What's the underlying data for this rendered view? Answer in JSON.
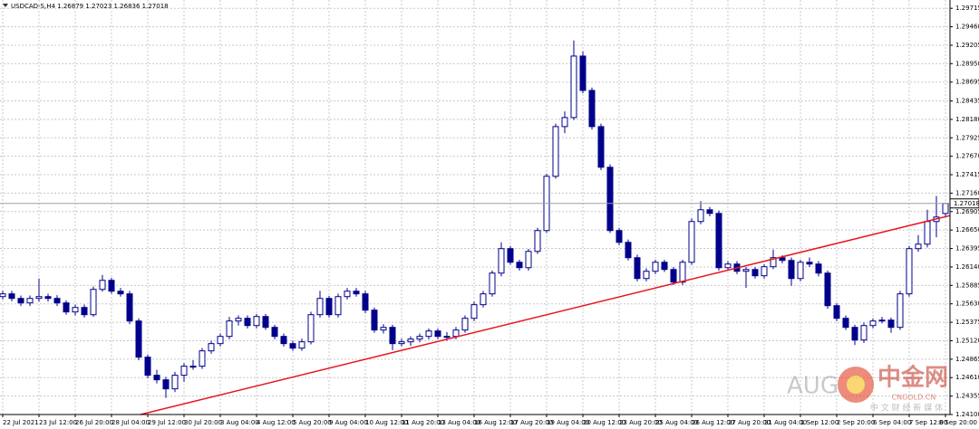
{
  "chart_data": {
    "type": "candlestick",
    "title": "USDCAD-S,H4 1.26879 1.27023 1.26836 1.27018",
    "categories": [
      "22 Jul 2021",
      null,
      null,
      null,
      "23 Jul 12:00",
      null,
      null,
      null,
      "26 Jul 20:00",
      null,
      null,
      null,
      "28 Jul 04:00",
      null,
      null,
      null,
      "29 Jul 12:00",
      null,
      null,
      null,
      "30 Jul 20:00",
      null,
      null,
      null,
      "3 Aug 04:00",
      null,
      null,
      null,
      "4 Aug 12:00",
      null,
      null,
      null,
      "5 Aug 20:00",
      null,
      null,
      null,
      "9 Aug 04:00",
      null,
      null,
      null,
      "10 Aug 12:00",
      null,
      null,
      null,
      "11 Aug 20:00",
      null,
      null,
      null,
      "13 Aug 04:00",
      null,
      null,
      null,
      "16 Aug 12:00",
      null,
      null,
      null,
      "17 Aug 20:00",
      null,
      null,
      null,
      "19 Aug 04:00",
      null,
      null,
      null,
      "20 Aug 12:00",
      null,
      null,
      null,
      "23 Aug 20:00",
      null,
      null,
      null,
      "25 Aug 04:00",
      null,
      null,
      null,
      "26 Aug 12:00",
      null,
      null,
      null,
      "27 Aug 20:00",
      null,
      null,
      null,
      "31 Aug 04:00",
      null,
      null,
      null,
      "1 Sep 12:00",
      null,
      null,
      null,
      "2 Sep 20:00",
      null,
      null,
      null,
      "6 Sep 04:00",
      null,
      null,
      null,
      "7 Sep 12:00",
      null,
      null,
      null,
      "8 Sep 20:00"
    ],
    "open": [
      1.2573,
      1.25768,
      1.25705,
      1.25643,
      1.25705,
      1.2573,
      1.25705,
      1.25643,
      1.25518,
      1.2558,
      1.2548,
      1.2583,
      1.25955,
      1.25805,
      1.25768,
      1.25393,
      1.24893,
      1.24643,
      1.2458,
      1.24455,
      1.24643,
      1.24768,
      1.24768,
      1.2498,
      1.2508,
      1.2518,
      1.25393,
      1.2543,
      1.2533,
      1.25455,
      1.25305,
      1.2518,
      1.2508,
      1.25018,
      1.25105,
      1.2548,
      1.25705,
      1.2548,
      1.2573,
      1.25805,
      1.25768,
      1.25543,
      1.25268,
      1.25305,
      1.2508,
      1.25105,
      1.25143,
      1.2518,
      1.25255,
      1.2518,
      1.2518,
      1.25268,
      1.2543,
      1.25618,
      1.25768,
      1.26055,
      1.26393,
      1.26205,
      1.2613,
      1.26355,
      1.26643,
      1.27393,
      1.2808,
      1.28205,
      1.29055,
      1.2858,
      1.2808,
      1.27518,
      1.26643,
      1.2648,
      1.26268,
      1.2598,
      1.2608,
      1.26205,
      1.26105,
      1.2593,
      1.26205,
      1.26768,
      1.2693,
      1.2688,
      1.2613,
      1.2618,
      1.2608,
      1.26105,
      1.26018,
      1.26143,
      1.26268,
      1.2623,
      1.2598,
      1.26205,
      1.2618,
      1.26055,
      1.25605,
      1.2543,
      1.25305,
      1.2513,
      1.2533,
      1.25393,
      1.25405,
      1.25305,
      1.25768,
      1.26393,
      1.26455,
      1.26768,
      1.26879
    ],
    "high": [
      1.2581,
      1.2581,
      1.25745,
      1.25745,
      1.2598,
      1.2577,
      1.2575,
      1.2568,
      1.2562,
      1.2562,
      1.2587,
      1.2603,
      1.2599,
      1.2585,
      1.2581,
      1.2543,
      1.2493,
      1.2472,
      1.2462,
      1.2469,
      1.2481,
      1.2485,
      1.2502,
      1.2512,
      1.2522,
      1.2545,
      1.2547,
      1.2547,
      1.2549,
      1.2549,
      1.2534,
      1.2522,
      1.2512,
      1.2515,
      1.2552,
      1.2581,
      1.2574,
      1.2577,
      1.2585,
      1.2585,
      1.2581,
      1.2558,
      1.2535,
      1.2534,
      1.2515,
      1.2518,
      1.2522,
      1.2529,
      1.2529,
      1.2524,
      1.2531,
      1.2547,
      1.2566,
      1.2581,
      1.2609,
      1.2648,
      1.2643,
      1.2624,
      1.2639,
      1.2668,
      1.2743,
      1.2812,
      1.2829,
      1.2927,
      1.2912,
      1.2862,
      1.2812,
      1.2756,
      1.2668,
      1.2652,
      1.2631,
      1.2612,
      1.2624,
      1.2624,
      1.2614,
      1.2624,
      1.2681,
      1.2705,
      1.2697,
      1.2692,
      1.2622,
      1.2622,
      1.2614,
      1.2614,
      1.2618,
      1.2638,
      1.263,
      1.2627,
      1.2624,
      1.2627,
      1.2622,
      1.2609,
      1.2564,
      1.2547,
      1.2534,
      1.2537,
      1.2543,
      1.2545,
      1.2544,
      1.2581,
      1.2643,
      1.2658,
      1.2693,
      1.2712,
      1.27023
    ],
    "low": [
      1.2569,
      1.25665,
      1.256,
      1.256,
      1.2566,
      1.2566,
      1.256,
      1.2548,
      1.2547,
      1.2544,
      1.2545,
      1.258,
      1.2577,
      1.2573,
      1.2535,
      1.2485,
      1.246,
      1.2453,
      1.2433,
      1.2441,
      1.2455,
      1.2472,
      1.2473,
      1.2494,
      1.2504,
      1.2514,
      1.2533,
      1.2529,
      1.2529,
      1.2527,
      1.2514,
      1.2504,
      1.2498,
      1.2498,
      1.2507,
      1.2544,
      1.2544,
      1.2544,
      1.2569,
      1.2573,
      1.255,
      1.2523,
      1.2522,
      1.2499,
      1.2504,
      1.2505,
      1.251,
      1.2514,
      1.2514,
      1.2512,
      1.2514,
      1.2523,
      1.2539,
      1.2558,
      1.2573,
      1.2601,
      1.2617,
      1.2609,
      1.2609,
      1.2632,
      1.2661,
      1.2736,
      1.2799,
      1.2817,
      1.2854,
      1.2804,
      1.2748,
      1.2661,
      1.2644,
      1.2623,
      1.2594,
      1.2594,
      1.2604,
      1.2607,
      1.2589,
      1.2589,
      1.2617,
      1.2673,
      1.2684,
      1.2609,
      1.2609,
      1.2604,
      1.2585,
      1.2598,
      1.2598,
      1.2611,
      1.2619,
      1.2588,
      1.2594,
      1.2614,
      1.2601,
      1.2556,
      1.2539,
      1.2527,
      1.2506,
      1.2509,
      1.2529,
      1.2536,
      1.2523,
      1.2527,
      1.2573,
      1.2635,
      1.2641,
      1.2655,
      1.26836
    ],
    "close": [
      1.25768,
      1.25705,
      1.25643,
      1.25705,
      1.2573,
      1.25705,
      1.25643,
      1.25518,
      1.2558,
      1.2548,
      1.2583,
      1.25955,
      1.25805,
      1.25768,
      1.25393,
      1.24893,
      1.24643,
      1.2458,
      1.24455,
      1.24643,
      1.24768,
      1.24768,
      1.2498,
      1.2508,
      1.2518,
      1.25393,
      1.2543,
      1.2533,
      1.25455,
      1.25305,
      1.2518,
      1.2508,
      1.25018,
      1.25105,
      1.2548,
      1.25705,
      1.2548,
      1.2573,
      1.25805,
      1.25768,
      1.25543,
      1.25268,
      1.25305,
      1.2508,
      1.25105,
      1.25143,
      1.2518,
      1.25255,
      1.2518,
      1.2518,
      1.25268,
      1.2543,
      1.25618,
      1.25768,
      1.26055,
      1.26393,
      1.26205,
      1.2613,
      1.26355,
      1.26643,
      1.27393,
      1.2808,
      1.28205,
      1.29055,
      1.2858,
      1.2808,
      1.27518,
      1.26643,
      1.2648,
      1.26268,
      1.2598,
      1.2608,
      1.26205,
      1.26105,
      1.2593,
      1.26205,
      1.26768,
      1.2693,
      1.2688,
      1.2613,
      1.2618,
      1.2608,
      1.26105,
      1.26018,
      1.26143,
      1.26268,
      1.2623,
      1.2598,
      1.26205,
      1.2618,
      1.26055,
      1.25605,
      1.2543,
      1.25305,
      1.2513,
      1.2533,
      1.25393,
      1.25405,
      1.25305,
      1.25768,
      1.26393,
      1.26455,
      1.26768,
      1.2683,
      1.27018
    ],
    "color": "#00008b",
    "up_fill": "#ffffff",
    "ylim": [
      1.241,
      1.2983
    ],
    "yticks": [
      1.29715,
      {
        "value": 1.2946,
        "label": "1.29460"
      },
      1.29205,
      {
        "value": 1.2895,
        "label": "1.28950"
      },
      1.28695,
      1.28435,
      {
        "value": 1.2818,
        "label": "1.28180"
      },
      1.27925,
      {
        "value": 1.2767,
        "label": "1.27670"
      },
      1.27415,
      {
        "value": 1.2716,
        "label": "1.27160"
      },
      1.26905,
      {
        "value": 1.2665,
        "label": "1.26650"
      },
      1.26395,
      {
        "value": 1.2614,
        "label": "1.26140"
      },
      1.25885,
      {
        "value": 1.2563,
        "label": "1.25630"
      },
      1.25375,
      {
        "value": 1.2512,
        "label": "1.25120"
      },
      1.24865,
      {
        "value": 1.2461,
        "label": "1.24610"
      },
      1.24355,
      {
        "value": 1.241,
        "label": "1.24100"
      }
    ],
    "last_price": {
      "value": 1.27018,
      "label": "1.27018"
    },
    "trendline": {
      "x": [
        15.2,
        104.5
      ],
      "y": [
        1.241,
        1.2685
      ],
      "color": "#e8141b"
    },
    "grid": true,
    "watermark": {
      "brand": "AUG",
      "name": "中金网",
      "site": "CNGOLD.CN",
      "tagline": "中 文 财 经 新 媒 体"
    }
  }
}
